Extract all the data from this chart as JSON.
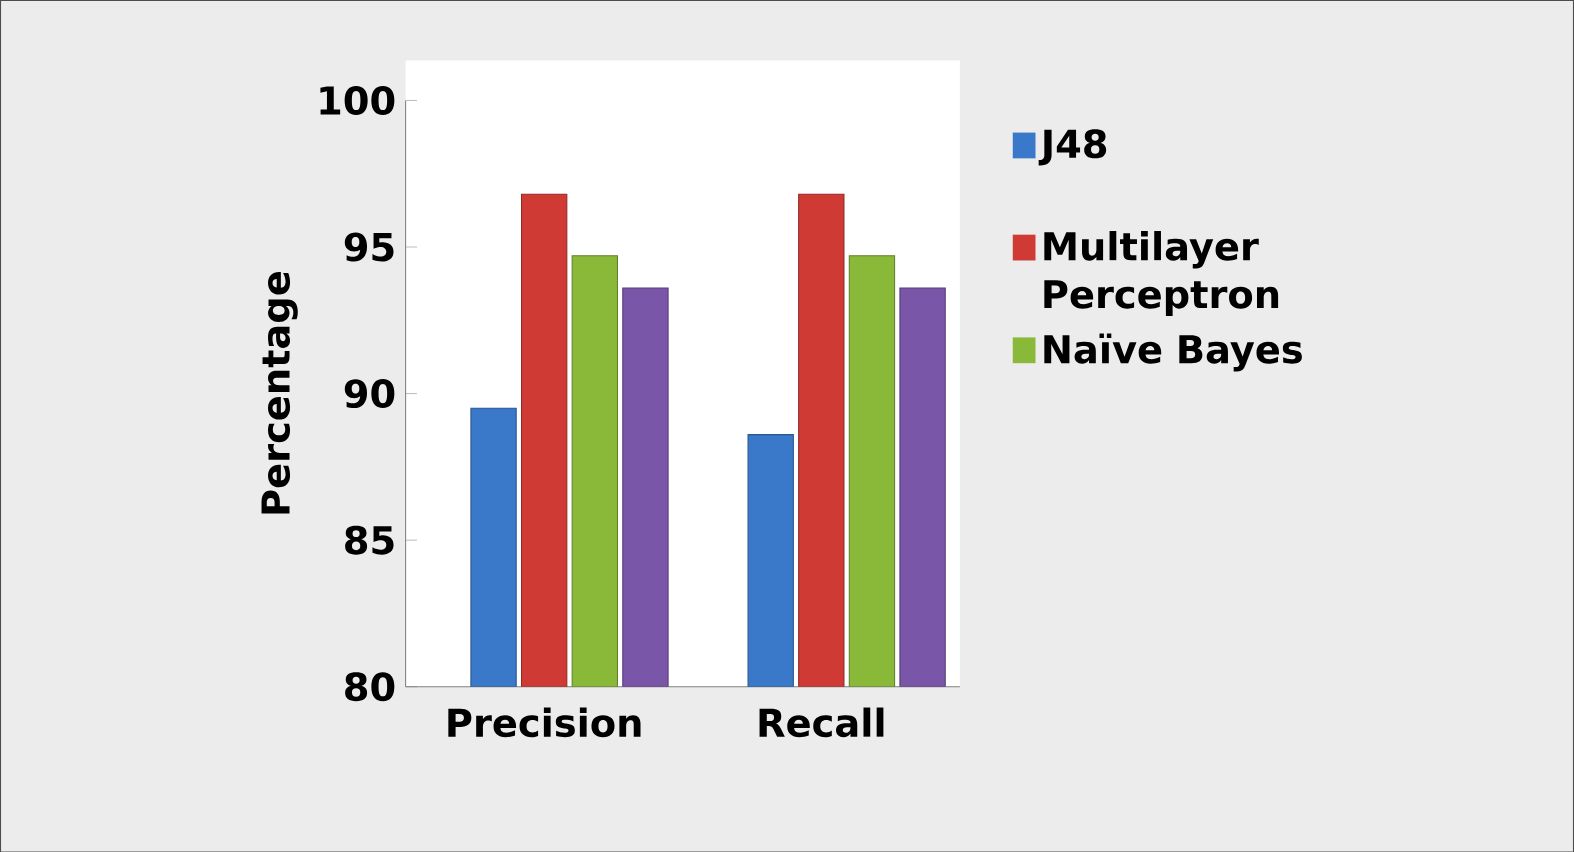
{
  "chart_data": {
    "type": "bar",
    "ylabel": "Percentage",
    "categories": [
      "Precision",
      "Recall"
    ],
    "series": [
      {
        "name": "J48",
        "color": "#3a78c9",
        "values": [
          89.5,
          88.6
        ]
      },
      {
        "name": "Multilayer Perceptron",
        "color": "#d03a35",
        "values": [
          96.8,
          96.8
        ]
      },
      {
        "name": "Naïve Bayes",
        "color": "#8ab93a",
        "values": [
          94.7,
          94.7
        ]
      },
      {
        "color": "#7a56a8",
        "values": [
          93.6,
          93.6
        ]
      }
    ],
    "ylim": [
      80,
      100
    ],
    "yticks": [
      80,
      85,
      90,
      95,
      100
    ],
    "grid": false,
    "legend": "right"
  }
}
